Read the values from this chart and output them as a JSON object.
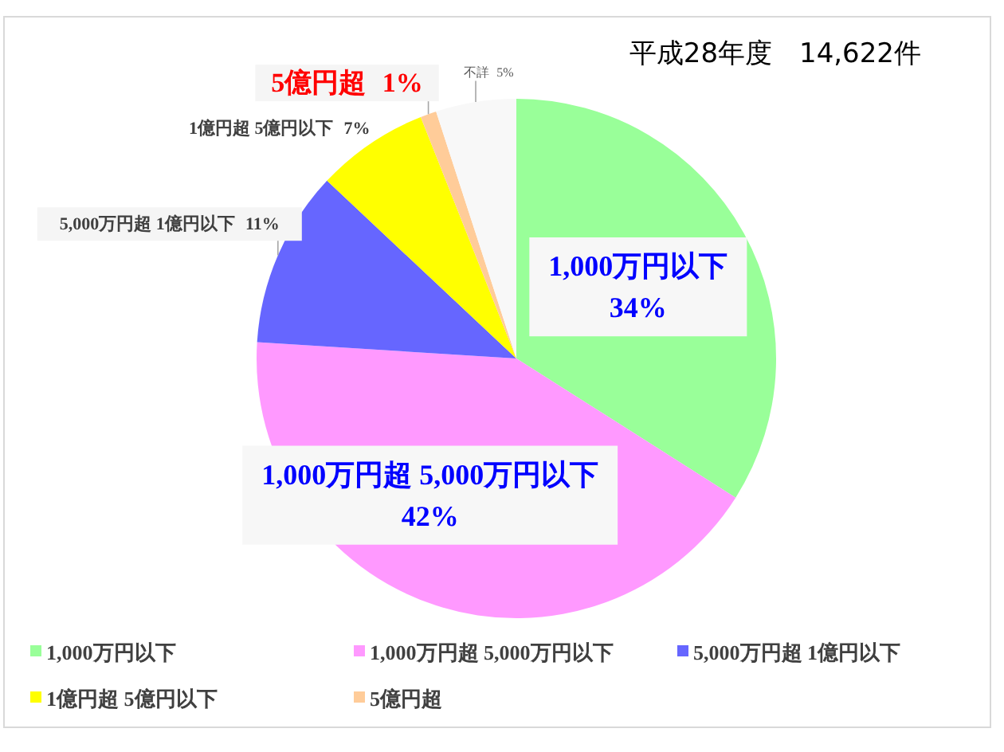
{
  "chart_data": {
    "type": "pie",
    "title": "平成28年度　14,622件",
    "categories": [
      "1,000万円以下",
      "1,000万円超 5,000万円以下",
      "5,000万円超 1億円以下",
      "1億円超 5億円以下",
      "5億円超",
      "不詳"
    ],
    "values": [
      34,
      42,
      11,
      7,
      1,
      5
    ],
    "colors": [
      "#99ff99",
      "#ff99ff",
      "#6666ff",
      "#ffff00",
      "#ffcc99",
      "#f8f8f8"
    ],
    "value_labels": [
      "34%",
      "42%",
      "11%",
      "7%",
      "1%",
      "5%"
    ],
    "legend": "bottom"
  }
}
